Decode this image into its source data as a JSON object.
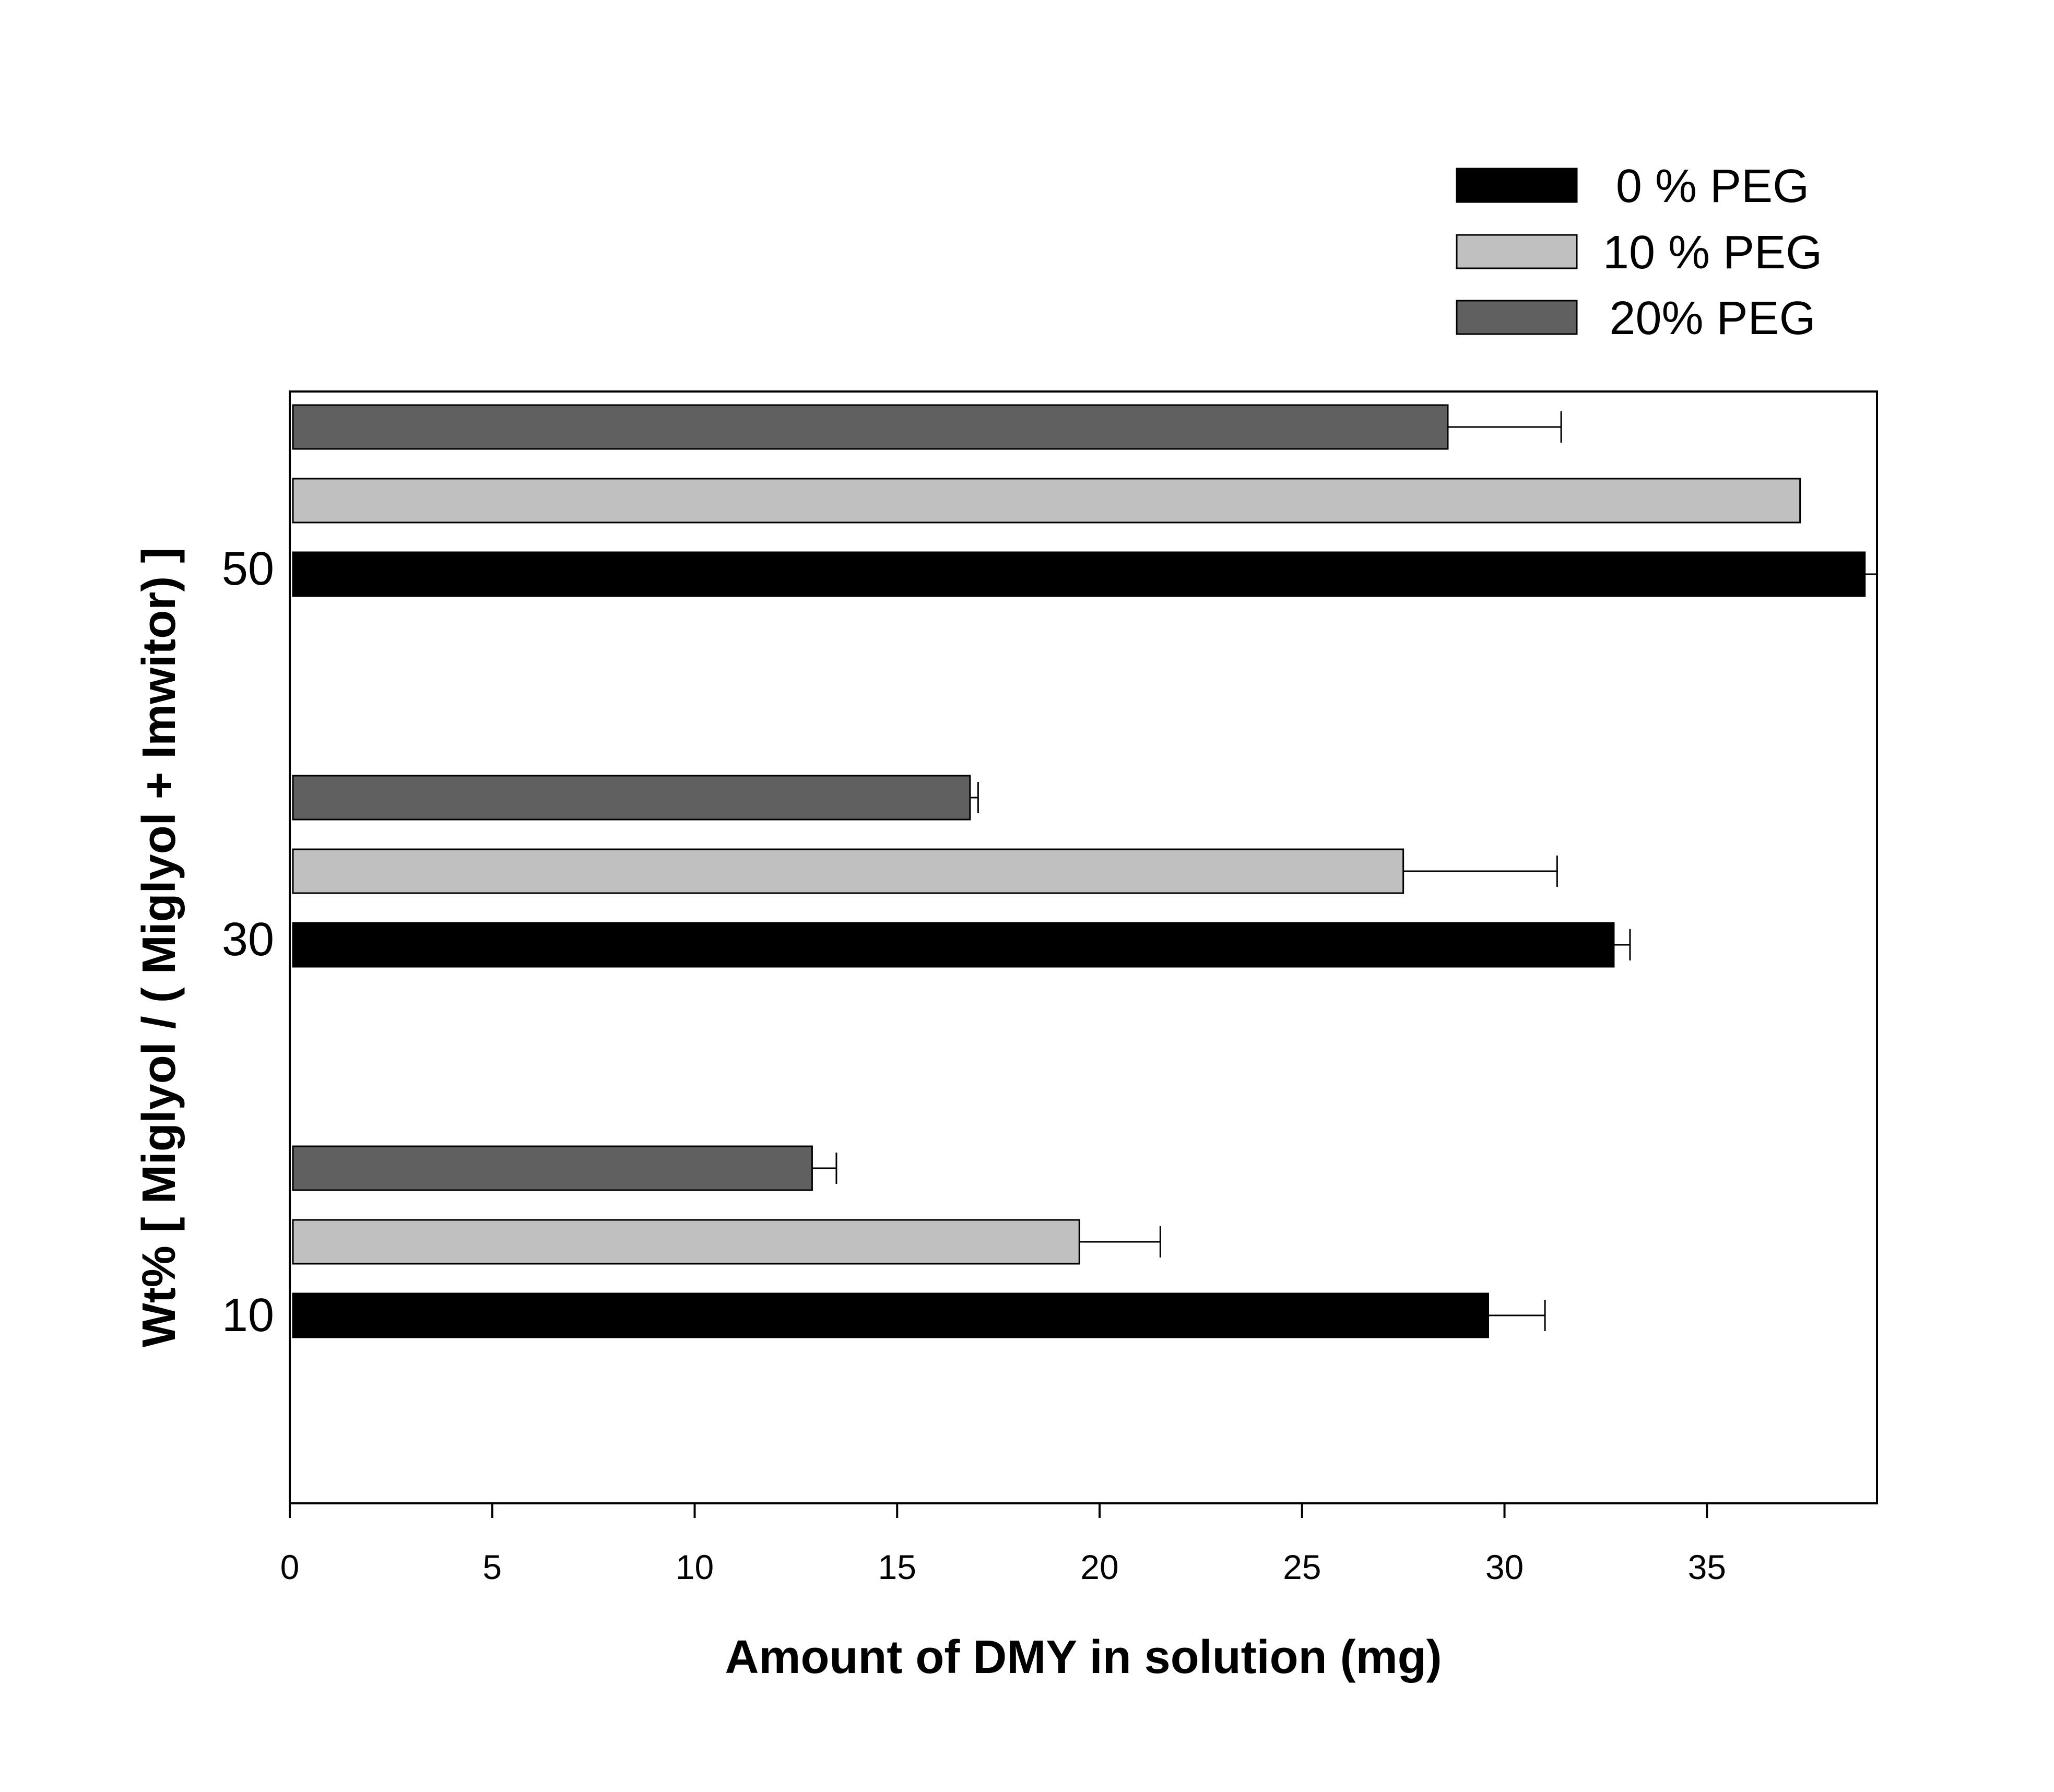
{
  "chart_data": {
    "type": "bar",
    "orientation": "horizontal",
    "title": "",
    "xlabel": "Amount of DMY in solution (mg)",
    "ylabel": "Wt% [ Miglyol / ( Miglyol + Imwitor) ]",
    "xlim": [
      0,
      39.2
    ],
    "xticks": [
      0,
      5,
      10,
      15,
      20,
      25,
      30,
      35
    ],
    "categories": [
      "10",
      "30",
      "50"
    ],
    "series": [
      {
        "name": "0 % PEG",
        "color": "#000000",
        "values": [
          29.6,
          32.7,
          38.9
        ],
        "errors": [
          1.4,
          0.4,
          0.3
        ]
      },
      {
        "name": "10 % PEG",
        "color": "#c0c0c0",
        "values": [
          19.5,
          27.5,
          37.3
        ],
        "errors": [
          2.0,
          3.8,
          0.0
        ]
      },
      {
        "name": "20% PEG",
        "color": "#606060",
        "values": [
          12.9,
          16.8,
          28.6
        ],
        "errors": [
          0.6,
          0.2,
          2.8
        ]
      }
    ],
    "legend_position": "top-right",
    "grid": false
  }
}
